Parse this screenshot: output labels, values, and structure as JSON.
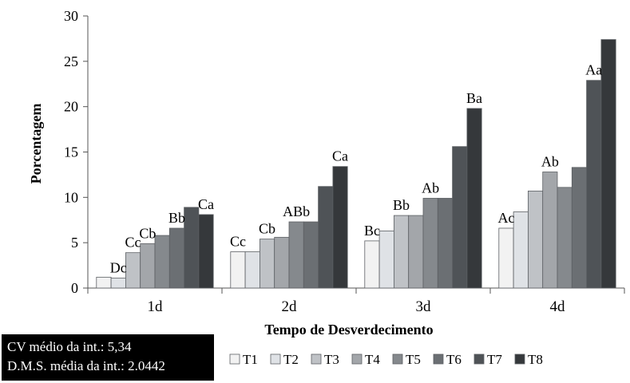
{
  "chart_data": {
    "type": "bar",
    "xlabel": "Tempo de Desverdecimento",
    "ylabel": "Porcentagem",
    "ylim": [
      0,
      30
    ],
    "yticks": [
      0,
      5,
      10,
      15,
      20,
      25,
      30
    ],
    "categories": [
      "1d",
      "2d",
      "3d",
      "4d"
    ],
    "series": [
      {
        "name": "T1",
        "color": "#f2f2f2",
        "values": [
          1.2,
          4.0,
          5.2,
          6.6
        ]
      },
      {
        "name": "T2",
        "color": "#dfe2e6",
        "values": [
          1.1,
          4.0,
          6.3,
          8.4
        ]
      },
      {
        "name": "T3",
        "color": "#bfc2c6",
        "values": [
          3.9,
          5.4,
          8.0,
          10.7
        ]
      },
      {
        "name": "T4",
        "color": "#a3a6aa",
        "values": [
          4.9,
          5.6,
          8.0,
          12.8
        ]
      },
      {
        "name": "T5",
        "color": "#85898d",
        "values": [
          5.8,
          7.3,
          9.9,
          11.1
        ]
      },
      {
        "name": "T6",
        "color": "#6b6f73",
        "values": [
          6.6,
          7.3,
          9.9,
          13.3
        ]
      },
      {
        "name": "T7",
        "color": "#4f5357",
        "values": [
          8.9,
          11.2,
          15.6,
          22.9
        ]
      },
      {
        "name": "T8",
        "color": "#35383b",
        "values": [
          8.1,
          13.4,
          19.8,
          27.4
        ]
      }
    ],
    "annotations": [
      {
        "category": "1d",
        "series": "T2",
        "text": "Dc"
      },
      {
        "category": "1d",
        "series": "T3",
        "text": "Cc"
      },
      {
        "category": "1d",
        "series": "T4",
        "text": "Cb"
      },
      {
        "category": "1d",
        "series": "T6",
        "text": "Bb"
      },
      {
        "category": "1d",
        "series": "T8",
        "text": "Ca"
      },
      {
        "category": "2d",
        "series": "T1",
        "text": "Cc"
      },
      {
        "category": "2d",
        "series": "T3",
        "text": "Cb"
      },
      {
        "category": "2d",
        "series": "T5",
        "text": "ABb"
      },
      {
        "category": "2d",
        "series": "T8",
        "text": "Ca"
      },
      {
        "category": "3d",
        "series": "T1",
        "text": "Bc"
      },
      {
        "category": "3d",
        "series": "T3",
        "text": "Bb"
      },
      {
        "category": "3d",
        "series": "T5",
        "text": "Ab"
      },
      {
        "category": "3d",
        "series": "T8",
        "text": "Ba"
      },
      {
        "category": "4d",
        "series": "T1",
        "text": "Ac"
      },
      {
        "category": "4d",
        "series": "T4",
        "text": "Ab"
      },
      {
        "category": "4d",
        "series": "T7",
        "text": "Aa"
      }
    ],
    "legend_position": "bottom"
  },
  "stats": {
    "cv_line": "CV médio da int.: 5,34",
    "dms_line": "D.M.S. média da int.: 2.0442"
  }
}
